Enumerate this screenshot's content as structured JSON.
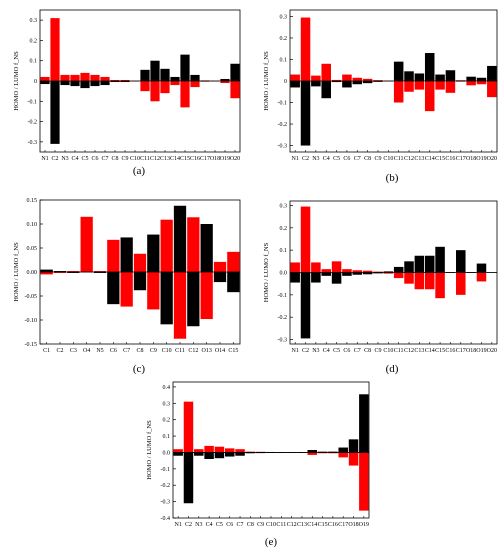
{
  "colors": {
    "homo": "#000000",
    "lumo": "#ff0000",
    "axis": "#000000"
  },
  "chart_data": [
    {
      "type": "bar",
      "panel_label": "(a)",
      "ylabel": "HOMO / LUMO f_NS",
      "ylim": [
        -0.35,
        0.35
      ],
      "yticks": [
        "0.3",
        "0.2",
        "0.1",
        "0",
        "-0.1",
        "-0.2",
        "-0.3"
      ],
      "ytick_values": [
        0.3,
        0.2,
        0.1,
        0,
        -0.1,
        -0.2,
        -0.3
      ],
      "categories": [
        "N1",
        "C2",
        "N3",
        "C4",
        "C5",
        "C6",
        "C7",
        "C8",
        "C9",
        "C10",
        "C11",
        "C12",
        "C13",
        "C14",
        "C15",
        "C16",
        "C17",
        "O18",
        "O19",
        "O20"
      ],
      "series": [
        {
          "key": "lumo",
          "values": [
            0.02,
            0.31,
            0.03,
            0.03,
            0.04,
            0.03,
            0.02,
            0.005,
            0.005,
            0.002,
            -0.05,
            -0.1,
            -0.06,
            -0.02,
            -0.13,
            -0.03,
            0.003,
            0.002,
            -0.01,
            -0.085
          ]
        },
        {
          "key": "homo",
          "values": [
            -0.015,
            -0.31,
            -0.02,
            -0.025,
            -0.035,
            -0.025,
            -0.02,
            -0.005,
            -0.005,
            -0.002,
            0.055,
            0.1,
            0.06,
            0.02,
            0.13,
            0.03,
            -0.003,
            -0.002,
            0.01,
            0.085
          ]
        }
      ]
    },
    {
      "type": "bar",
      "panel_label": "(b)",
      "ylabel": "HOMO / LUMO f_NS",
      "ylim": [
        -0.33,
        0.33
      ],
      "yticks": [
        "0.3",
        "0.2",
        "0.1",
        "0",
        "-0.1",
        "-0.2",
        "-0.3"
      ],
      "ytick_values": [
        0.3,
        0.2,
        0.1,
        0,
        -0.1,
        -0.2,
        -0.3
      ],
      "categories": [
        "N1",
        "C2",
        "N3",
        "C4",
        "C5",
        "C6",
        "C7",
        "C8",
        "C9",
        "C10",
        "C11",
        "C12",
        "C13",
        "C14",
        "C15",
        "C16",
        "C17",
        "O18",
        "O19",
        "O20"
      ],
      "series": [
        {
          "key": "lumo",
          "values": [
            0.03,
            0.295,
            0.025,
            0.08,
            0.005,
            0.03,
            0.015,
            0.01,
            0.004,
            0.002,
            -0.1,
            -0.05,
            -0.04,
            -0.14,
            -0.04,
            -0.055,
            -0.003,
            -0.02,
            -0.015,
            -0.075
          ]
        },
        {
          "key": "homo",
          "values": [
            -0.03,
            -0.3,
            -0.025,
            -0.08,
            -0.005,
            -0.03,
            -0.015,
            -0.01,
            -0.004,
            -0.002,
            0.09,
            0.045,
            0.035,
            0.13,
            0.03,
            0.05,
            0.003,
            0.02,
            0.015,
            0.07
          ]
        }
      ]
    },
    {
      "type": "bar",
      "panel_label": "(c)",
      "ylabel": "HOMO / LUMO f_NS",
      "ylim": [
        -0.15,
        0.15
      ],
      "yticks": [
        "0.15",
        "0.10",
        "0.05",
        "0.00",
        "-0.05",
        "-0.10",
        "-0.15"
      ],
      "ytick_values": [
        0.15,
        0.1,
        0.05,
        0.0,
        -0.05,
        -0.1,
        -0.15
      ],
      "categories": [
        "C1",
        "C2",
        "C3",
        "O4",
        "N5",
        "C6",
        "C7",
        "C8",
        "C9",
        "C10",
        "C11",
        "C12",
        "O13",
        "O14",
        "C15"
      ],
      "series": [
        {
          "key": "lumo",
          "values": [
            -0.005,
            -0.002,
            0.002,
            0.115,
            0.002,
            0.067,
            -0.072,
            0.038,
            -0.078,
            0.109,
            -0.139,
            0.114,
            -0.098,
            0.021,
            0.042
          ]
        },
        {
          "key": "homo",
          "values": [
            0.005,
            0.002,
            -0.002,
            0.0,
            -0.002,
            -0.067,
            0.072,
            -0.038,
            0.078,
            -0.109,
            0.138,
            -0.113,
            0.1,
            -0.021,
            -0.042
          ]
        }
      ]
    },
    {
      "type": "bar",
      "panel_label": "(d)",
      "ylabel": "HOMO / LUMO f_NS",
      "ylim": [
        -0.32,
        0.32
      ],
      "yticks": [
        "0.3",
        "0.2",
        "0.1",
        "0.0",
        "-0.1",
        "-0.2",
        "-0.3"
      ],
      "ytick_values": [
        0.3,
        0.2,
        0.1,
        0.0,
        -0.1,
        -0.2,
        -0.3
      ],
      "categories": [
        "N1",
        "C2",
        "N3",
        "C4",
        "C5",
        "C6",
        "C7",
        "C8",
        "C9",
        "C10",
        "C11",
        "C12",
        "C13",
        "C14",
        "C15",
        "C16",
        "C17",
        "O18",
        "O19",
        "O20"
      ],
      "series": [
        {
          "key": "lumo",
          "values": [
            0.045,
            0.295,
            0.045,
            0.015,
            0.05,
            0.015,
            0.01,
            0.008,
            0.004,
            -0.005,
            -0.025,
            -0.05,
            -0.075,
            -0.075,
            -0.115,
            -0.002,
            -0.1,
            -0.002,
            -0.04,
            0.0
          ]
        },
        {
          "key": "homo",
          "values": [
            -0.045,
            -0.295,
            -0.045,
            -0.015,
            -0.05,
            -0.015,
            -0.01,
            -0.008,
            -0.004,
            0.005,
            0.025,
            0.05,
            0.075,
            0.075,
            0.115,
            0.002,
            0.1,
            0.002,
            0.04,
            0.0
          ]
        }
      ]
    },
    {
      "type": "bar",
      "panel_label": "(e)",
      "ylabel": "HOMO / LUMO f_NS",
      "ylim": [
        -0.4,
        0.43
      ],
      "yticks": [
        "0.4",
        "0.3",
        "0.2",
        "0.1",
        "0.0",
        "-0.1",
        "-0.2",
        "-0.3",
        "-0.4"
      ],
      "ytick_values": [
        0.4,
        0.3,
        0.2,
        0.1,
        0.0,
        -0.1,
        -0.2,
        -0.3,
        -0.4
      ],
      "categories": [
        "N1",
        "C2",
        "N3",
        "C4",
        "C5",
        "C6",
        "C7",
        "C8",
        "C9",
        "C10",
        "C11",
        "C12",
        "C13",
        "C14",
        "C15",
        "C16",
        "C17",
        "O18",
        "O19"
      ],
      "series": [
        {
          "key": "lumo",
          "values": [
            0.02,
            0.31,
            0.02,
            0.04,
            0.035,
            0.025,
            0.02,
            0.005,
            0.004,
            0.003,
            0.002,
            0.002,
            0.002,
            -0.015,
            -0.005,
            -0.005,
            -0.03,
            -0.08,
            -0.355
          ]
        },
        {
          "key": "homo",
          "values": [
            -0.02,
            -0.31,
            -0.02,
            -0.04,
            -0.035,
            -0.025,
            -0.02,
            -0.005,
            -0.004,
            -0.003,
            -0.002,
            -0.002,
            -0.002,
            0.015,
            0.005,
            0.005,
            0.03,
            0.08,
            0.355
          ]
        }
      ]
    }
  ]
}
